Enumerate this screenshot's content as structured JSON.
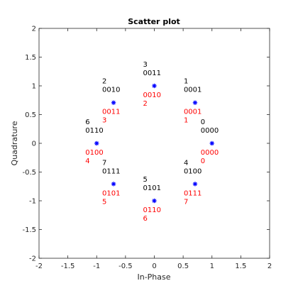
{
  "chart_data": {
    "type": "scatter",
    "title": "Scatter plot",
    "xlabel": "In-Phase",
    "ylabel": "Quadrature",
    "xlim": [
      -2,
      2
    ],
    "ylim": [
      -2,
      2
    ],
    "xticks": [
      "-2",
      "-1.5",
      "-1",
      "-0.5",
      "0",
      "0.5",
      "1",
      "1.5",
      "2"
    ],
    "yticks": [
      "-2",
      "-1.5",
      "-1",
      "-0.5",
      "0",
      "0.5",
      "1",
      "1.5",
      "2"
    ],
    "grid": false,
    "marker_color": "#0000ff",
    "annotation_colors": {
      "reference": "#000000",
      "mapped": "#ff0000"
    },
    "points": [
      {
        "x": 1.0,
        "y": 0.0,
        "ref_index": "0",
        "ref_bits": "0000",
        "map_bits": "0000",
        "map_index": "0"
      },
      {
        "x": 0.707,
        "y": 0.707,
        "ref_index": "1",
        "ref_bits": "0001",
        "map_bits": "0001",
        "map_index": "1"
      },
      {
        "x": -0.707,
        "y": 0.707,
        "ref_index": "2",
        "ref_bits": "0010",
        "map_bits": "0011",
        "map_index": "3"
      },
      {
        "x": 0.0,
        "y": 1.0,
        "ref_index": "3",
        "ref_bits": "0011",
        "map_bits": "0010",
        "map_index": "2"
      },
      {
        "x": 0.707,
        "y": -0.707,
        "ref_index": "4",
        "ref_bits": "0100",
        "map_bits": "0111",
        "map_index": "7"
      },
      {
        "x": 0.0,
        "y": -1.0,
        "ref_index": "5",
        "ref_bits": "0101",
        "map_bits": "0110",
        "map_index": "6"
      },
      {
        "x": -1.0,
        "y": 0.0,
        "ref_index": "6",
        "ref_bits": "0110",
        "map_bits": "0100",
        "map_index": "4"
      },
      {
        "x": -0.707,
        "y": -0.707,
        "ref_index": "7",
        "ref_bits": "0111",
        "map_bits": "0101",
        "map_index": "5"
      }
    ]
  }
}
